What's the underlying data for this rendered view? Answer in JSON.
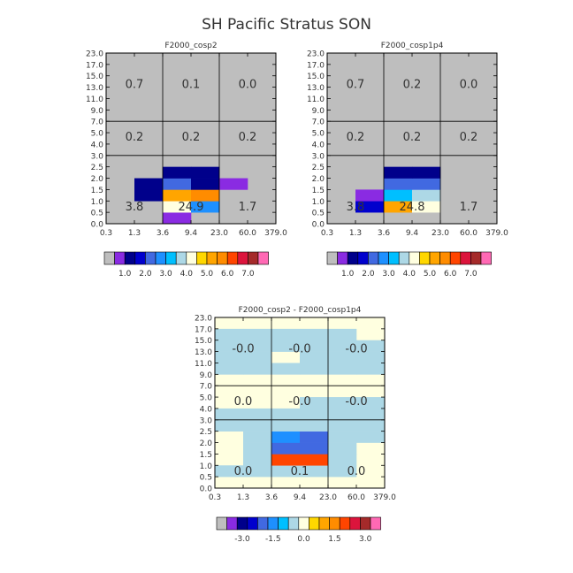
{
  "page": {
    "title": "SH Pacific Stratus SON"
  },
  "colors": {
    "grid_missing": "#bebebe",
    "grid_lines": "#000000",
    "text": "#333333"
  },
  "chart_data": [
    {
      "type": "heatmap",
      "title": "F2000_cosp2",
      "x_ticks": [
        "0.3",
        "1.3",
        "3.6",
        "9.4",
        "23.0",
        "60.0",
        "379.0"
      ],
      "y_ticks": [
        "0.0",
        "0.5",
        "1.0",
        "1.5",
        "2.0",
        "2.5",
        "3.0",
        "4.0",
        "5.0",
        "7.0",
        "9.0",
        "11.0",
        "13.0",
        "15.0",
        "17.0",
        "23.0"
      ],
      "region_labels": [
        {
          "col": 0,
          "row": 2,
          "text": "0.7"
        },
        {
          "col": 1,
          "row": 2,
          "text": "0.1"
        },
        {
          "col": 2,
          "row": 2,
          "text": "0.0"
        },
        {
          "col": 0,
          "row": 1,
          "text": "0.2"
        },
        {
          "col": 1,
          "row": 1,
          "text": "0.2"
        },
        {
          "col": 2,
          "row": 1,
          "text": "0.2"
        },
        {
          "col": 0,
          "row": 0,
          "text": "3.8"
        },
        {
          "col": 1,
          "row": 0,
          "text": "24.9"
        },
        {
          "col": 2,
          "row": 0,
          "text": "1.7"
        }
      ],
      "cells": [
        {
          "x": 1,
          "y": 2,
          "c": 2
        },
        {
          "x": 1,
          "y": 3,
          "c": 2
        },
        {
          "x": 2,
          "y": 0,
          "c": 1
        },
        {
          "x": 2,
          "y": 1,
          "c": 8
        },
        {
          "x": 3,
          "y": 1,
          "c": 5
        },
        {
          "x": 2,
          "y": 2,
          "c": 10
        },
        {
          "x": 3,
          "y": 2,
          "c": 12
        },
        {
          "x": 3,
          "y": 2,
          "c": 11
        },
        {
          "x": 2,
          "y": 3,
          "c": 4
        },
        {
          "x": 3,
          "y": 3,
          "c": 2
        },
        {
          "x": 2,
          "y": 4,
          "c": 2
        },
        {
          "x": 3,
          "y": 4,
          "c": 2
        },
        {
          "x": 4,
          "y": 3,
          "c": 1
        }
      ],
      "colorbar": {
        "colors": [
          "#bebebe",
          "#8a2be2",
          "#00008b",
          "#0000cd",
          "#4169e1",
          "#1e90ff",
          "#00bfff",
          "#add8e6",
          "#ffffe0",
          "#ffd700",
          "#ffa500",
          "#ff8c00",
          "#ff4500",
          "#dc143c",
          "#a52a2a",
          "#ff69b4"
        ],
        "labels": [
          "1.0",
          "2.0",
          "3.0",
          "4.0",
          "5.0",
          "6.0",
          "7.0"
        ]
      }
    },
    {
      "type": "heatmap",
      "title": "F2000_cosp1p4",
      "x_ticks": [
        "0.3",
        "1.3",
        "3.6",
        "9.4",
        "23.0",
        "60.0",
        "379.0"
      ],
      "y_ticks": [
        "0.0",
        "0.5",
        "1.0",
        "1.5",
        "2.0",
        "2.5",
        "3.0",
        "4.0",
        "5.0",
        "7.0",
        "9.0",
        "11.0",
        "13.0",
        "15.0",
        "17.0",
        "23.0"
      ],
      "region_labels": [
        {
          "col": 0,
          "row": 2,
          "text": "0.7"
        },
        {
          "col": 1,
          "row": 2,
          "text": "0.2"
        },
        {
          "col": 2,
          "row": 2,
          "text": "0.0"
        },
        {
          "col": 0,
          "row": 1,
          "text": "0.2"
        },
        {
          "col": 1,
          "row": 1,
          "text": "0.2"
        },
        {
          "col": 2,
          "row": 1,
          "text": "0.2"
        },
        {
          "col": 0,
          "row": 0,
          "text": "3.8"
        },
        {
          "col": 1,
          "row": 0,
          "text": "24.8"
        },
        {
          "col": 2,
          "row": 0,
          "text": "1.7"
        }
      ],
      "cells": [
        {
          "x": 1,
          "y": 1,
          "c": 3
        },
        {
          "x": 1,
          "y": 2,
          "c": 1
        },
        {
          "x": 2,
          "y": 1,
          "c": 10
        },
        {
          "x": 3,
          "y": 1,
          "c": 8
        },
        {
          "x": 2,
          "y": 2,
          "c": 6
        },
        {
          "x": 3,
          "y": 2,
          "c": 7
        },
        {
          "x": 2,
          "y": 3,
          "c": 4
        },
        {
          "x": 3,
          "y": 3,
          "c": 4
        },
        {
          "x": 2,
          "y": 4,
          "c": 2
        },
        {
          "x": 3,
          "y": 4,
          "c": 2
        }
      ],
      "colorbar": {
        "colors": [
          "#bebebe",
          "#8a2be2",
          "#00008b",
          "#0000cd",
          "#4169e1",
          "#1e90ff",
          "#00bfff",
          "#add8e6",
          "#ffffe0",
          "#ffd700",
          "#ffa500",
          "#ff8c00",
          "#ff4500",
          "#dc143c",
          "#a52a2a",
          "#ff69b4"
        ],
        "labels": [
          "1.0",
          "2.0",
          "3.0",
          "4.0",
          "5.0",
          "6.0",
          "7.0"
        ]
      }
    },
    {
      "type": "heatmap",
      "title": "F2000_cosp2 - F2000_cosp1p4",
      "x_ticks": [
        "0.3",
        "1.3",
        "3.6",
        "9.4",
        "23.0",
        "60.0",
        "379.0"
      ],
      "y_ticks": [
        "0.0",
        "0.5",
        "1.0",
        "1.5",
        "2.0",
        "2.5",
        "3.0",
        "4.0",
        "5.0",
        "7.0",
        "9.0",
        "11.0",
        "13.0",
        "15.0",
        "17.0",
        "23.0"
      ],
      "region_labels": [
        {
          "col": 0,
          "row": 2,
          "text": "-0.0"
        },
        {
          "col": 1,
          "row": 2,
          "text": "-0.0"
        },
        {
          "col": 2,
          "row": 2,
          "text": "-0.0"
        },
        {
          "col": 0,
          "row": 1,
          "text": "0.0"
        },
        {
          "col": 1,
          "row": 1,
          "text": "-0.0"
        },
        {
          "col": 2,
          "row": 1,
          "text": "-0.0"
        },
        {
          "col": 0,
          "row": 0,
          "text": "0.0"
        },
        {
          "col": 1,
          "row": 0,
          "text": "0.1"
        },
        {
          "col": 2,
          "row": 0,
          "text": "0.0"
        }
      ],
      "background_color": 8,
      "cells": [
        {
          "x": 0,
          "y": 1,
          "c": 7
        },
        {
          "x": 1,
          "y": 1,
          "c": 7
        },
        {
          "x": 2,
          "y": 1,
          "c": 7
        },
        {
          "x": 3,
          "y": 1,
          "c": 7
        },
        {
          "x": 4,
          "y": 1,
          "c": 7
        },
        {
          "x": 1,
          "y": 2,
          "c": 7
        },
        {
          "x": 2,
          "y": 2,
          "c": 12
        },
        {
          "x": 3,
          "y": 2,
          "c": 12
        },
        {
          "x": 4,
          "y": 2,
          "c": 7
        },
        {
          "x": 1,
          "y": 3,
          "c": 7
        },
        {
          "x": 2,
          "y": 3,
          "c": 4
        },
        {
          "x": 3,
          "y": 3,
          "c": 4
        },
        {
          "x": 4,
          "y": 3,
          "c": 7
        },
        {
          "x": 1,
          "y": 4,
          "c": 7
        },
        {
          "x": 2,
          "y": 4,
          "c": 5
        },
        {
          "x": 3,
          "y": 4,
          "c": 4
        },
        {
          "x": 4,
          "y": 4,
          "c": 7
        },
        {
          "x": 5,
          "y": 4,
          "c": 7
        },
        {
          "x": 0,
          "y": 5,
          "c": 7
        },
        {
          "x": 1,
          "y": 5,
          "c": 7
        },
        {
          "x": 2,
          "y": 5,
          "c": 7
        },
        {
          "x": 3,
          "y": 5,
          "c": 7
        },
        {
          "x": 4,
          "y": 5,
          "c": 7
        },
        {
          "x": 5,
          "y": 5,
          "c": 7
        },
        {
          "x": 0,
          "y": 6,
          "c": 7
        },
        {
          "x": 1,
          "y": 6,
          "c": 7
        },
        {
          "x": 2,
          "y": 6,
          "c": 7
        },
        {
          "x": 3,
          "y": 6,
          "c": 7
        },
        {
          "x": 4,
          "y": 6,
          "c": 7
        },
        {
          "x": 5,
          "y": 6,
          "c": 7
        },
        {
          "x": 3,
          "y": 7,
          "c": 7
        },
        {
          "x": 4,
          "y": 7,
          "c": 7
        },
        {
          "x": 5,
          "y": 7,
          "c": 7
        },
        {
          "x": 0,
          "y": 10,
          "c": 7
        },
        {
          "x": 1,
          "y": 10,
          "c": 7
        },
        {
          "x": 2,
          "y": 10,
          "c": 7
        },
        {
          "x": 3,
          "y": 10,
          "c": 7
        },
        {
          "x": 4,
          "y": 10,
          "c": 7
        },
        {
          "x": 5,
          "y": 10,
          "c": 7
        },
        {
          "x": 0,
          "y": 11,
          "c": 7
        },
        {
          "x": 1,
          "y": 11,
          "c": 7
        },
        {
          "x": 3,
          "y": 11,
          "c": 7
        },
        {
          "x": 4,
          "y": 11,
          "c": 7
        },
        {
          "x": 5,
          "y": 11,
          "c": 7
        },
        {
          "x": 0,
          "y": 12,
          "c": 7
        },
        {
          "x": 1,
          "y": 12,
          "c": 7
        },
        {
          "x": 2,
          "y": 12,
          "c": 7
        },
        {
          "x": 3,
          "y": 12,
          "c": 7
        },
        {
          "x": 4,
          "y": 12,
          "c": 7
        },
        {
          "x": 5,
          "y": 12,
          "c": 7
        },
        {
          "x": 0,
          "y": 13,
          "c": 7
        },
        {
          "x": 1,
          "y": 13,
          "c": 7
        },
        {
          "x": 2,
          "y": 13,
          "c": 7
        },
        {
          "x": 3,
          "y": 13,
          "c": 7
        },
        {
          "x": 4,
          "y": 13,
          "c": 7
        }
      ],
      "colorbar": {
        "colors": [
          "#bebebe",
          "#8a2be2",
          "#00008b",
          "#0000cd",
          "#4169e1",
          "#1e90ff",
          "#00bfff",
          "#add8e6",
          "#ffffe0",
          "#ffd700",
          "#ffa500",
          "#ff8c00",
          "#ff4500",
          "#dc143c",
          "#a52a2a",
          "#ff69b4"
        ],
        "labels": [
          "-3.0",
          "-1.5",
          "0.0",
          "1.5",
          "3.0"
        ]
      }
    }
  ]
}
